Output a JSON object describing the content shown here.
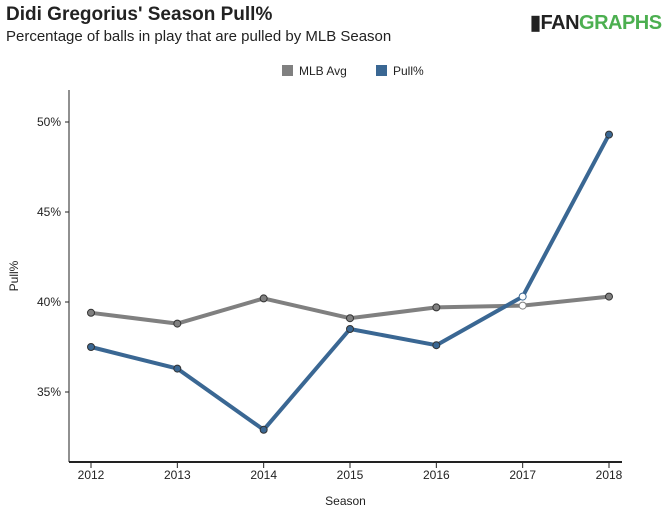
{
  "header": {
    "title": "Didi Gregorius' Season Pull%",
    "subtitle": "Percentage of balls in play that are pulled by MLB Season",
    "logo": "FANGRAPHS"
  },
  "chart_data": {
    "type": "line",
    "title": "Didi Gregorius' Season Pull%",
    "subtitle": "Percentage of balls in play that are pulled by MLB Season",
    "xlabel": "Season",
    "ylabel": "Pull%",
    "x": [
      2012,
      2013,
      2014,
      2015,
      2016,
      2017,
      2018
    ],
    "yticks": [
      35,
      40,
      45,
      50
    ],
    "ytick_labels": [
      "35%",
      "40%",
      "45%",
      "50%"
    ],
    "ylim": [
      32.4,
      51.7
    ],
    "legend_position": "top-center",
    "series": [
      {
        "name": "MLB Avg",
        "color": "#808080",
        "values": [
          39.4,
          38.8,
          40.2,
          39.1,
          39.7,
          39.8,
          40.3
        ]
      },
      {
        "name": "Pull%",
        "color": "#3a6793",
        "values": [
          37.5,
          36.3,
          32.9,
          38.5,
          37.6,
          40.3,
          49.3
        ]
      }
    ],
    "highlighted_x": 2017
  }
}
